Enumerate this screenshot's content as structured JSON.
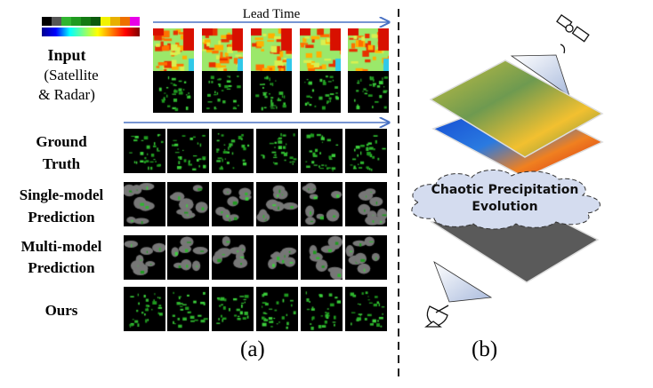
{
  "panel_a": {
    "lead_time_label": "Lead Time",
    "colorbar_discrete": [
      "#000000",
      "#555555",
      "#2fb52f",
      "#1f9a1f",
      "#137a13",
      "#0c5a0c",
      "#f2f200",
      "#e8b000",
      "#ee7000",
      "#e800e8"
    ],
    "colorbar_continuous": [
      "#00008f",
      "#0000ff",
      "#00ffff",
      "#80ff80",
      "#ffff00",
      "#ff8000",
      "#ff0000",
      "#800000"
    ],
    "input_label": {
      "title": "Input",
      "line2": "(Satellite",
      "line3": "& Radar)"
    },
    "rows": [
      {
        "line1": "Ground",
        "line2": "Truth",
        "style": "sharp"
      },
      {
        "line1": "Single-model",
        "line2": "Prediction",
        "style": "blurry"
      },
      {
        "line1": "Multi-model",
        "line2": "Prediction",
        "style": "blurry"
      },
      {
        "line1": "Ours",
        "line2": "",
        "style": "sharp"
      }
    ],
    "caption": "(a)"
  },
  "panel_b": {
    "cloud_line1": "Chaotic Precipitation",
    "cloud_line2": "Evolution",
    "caption": "(b)"
  }
}
